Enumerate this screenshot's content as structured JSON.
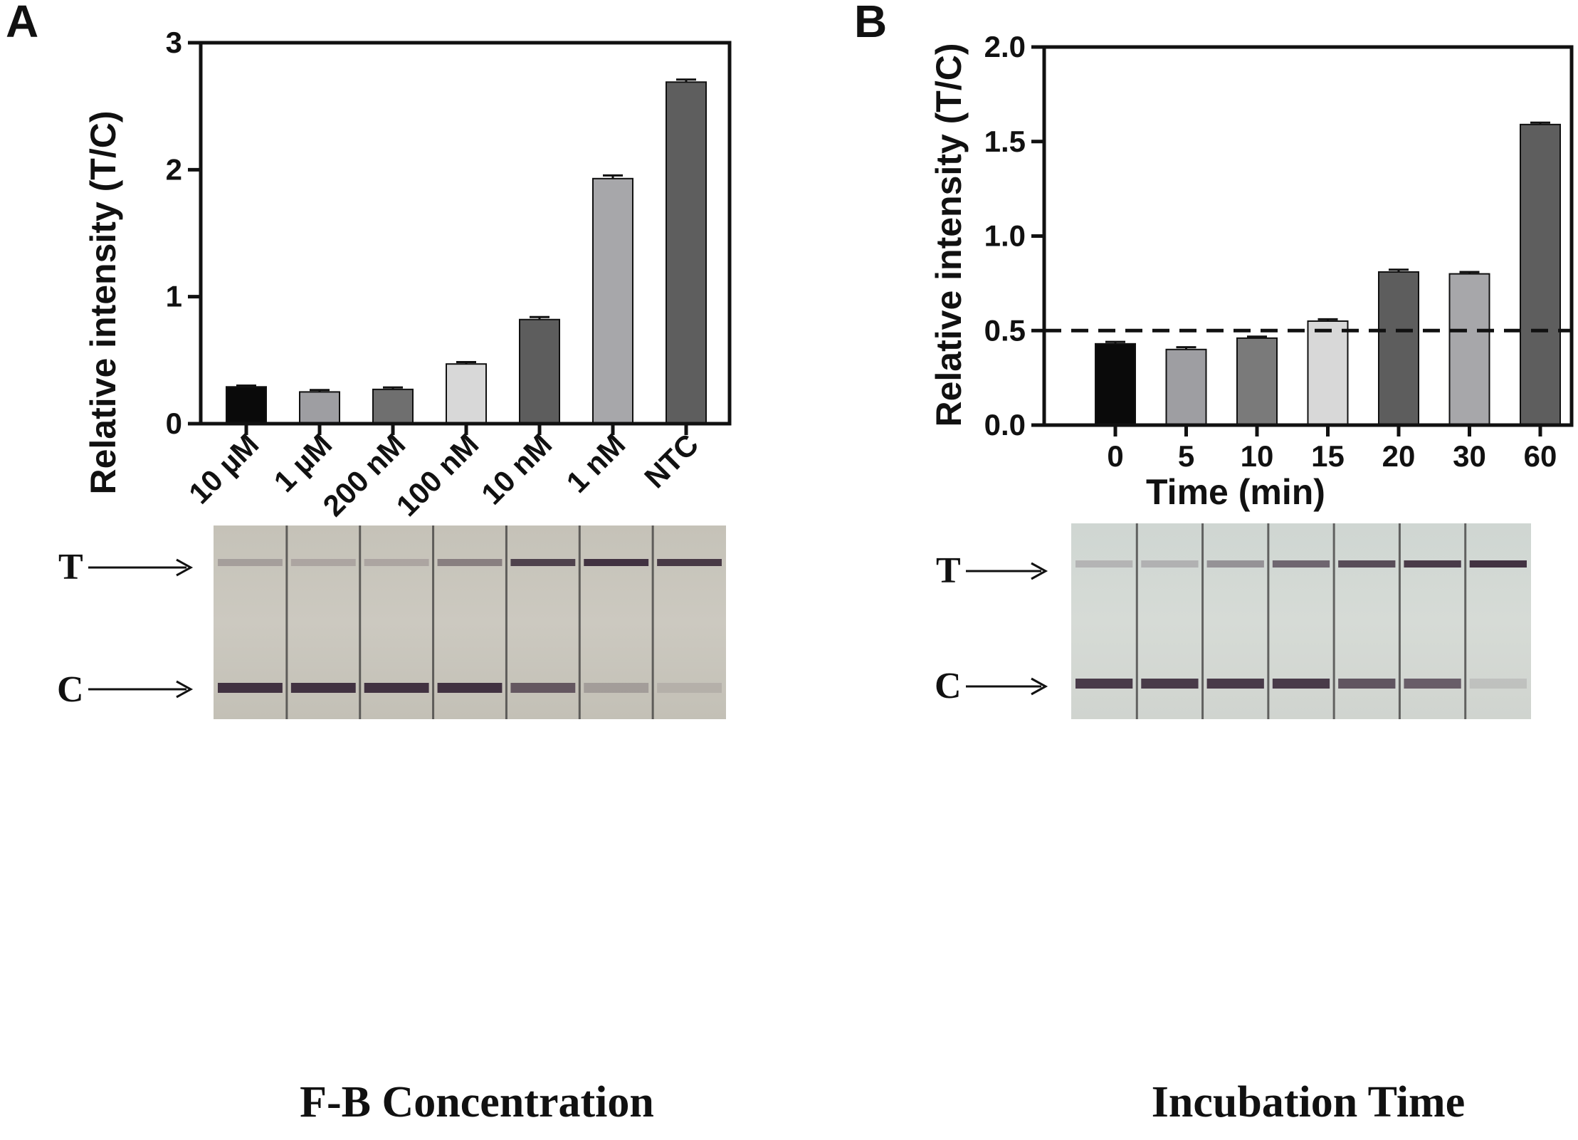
{
  "chart_data": [
    {
      "type": "bar",
      "panel": "A",
      "title": "",
      "xlabel": "",
      "ylabel": "Relative intensity (T/C)",
      "ylim": [
        0,
        3
      ],
      "yticks": [
        "0",
        "1",
        "2",
        "3"
      ],
      "categories": [
        "10 µM",
        "1 µM",
        "200 nM",
        "100 nM",
        "10 nM",
        "1 nM",
        "NTC"
      ],
      "values": [
        0.29,
        0.25,
        0.27,
        0.47,
        0.82,
        1.93,
        2.69
      ],
      "errors": [
        0.01,
        0.015,
        0.015,
        0.015,
        0.02,
        0.025,
        0.02
      ],
      "colors": [
        "#0a0a0a",
        "#9e9ea2",
        "#6f6f6f",
        "#d8d8d8",
        "#5d5d5d",
        "#a7a7aa",
        "#5e5e5e"
      ],
      "grid": false
    },
    {
      "type": "bar",
      "panel": "B",
      "title": "",
      "xlabel": "Time (min)",
      "ylabel": "Relative intensity (T/C)",
      "ylim": [
        0,
        2
      ],
      "yticks": [
        "0.0",
        "0.5",
        "1.0",
        "1.5",
        "2.0"
      ],
      "categories": [
        "0",
        "5",
        "10",
        "15",
        "20",
        "30",
        "60"
      ],
      "values": [
        0.43,
        0.4,
        0.46,
        0.55,
        0.81,
        0.8,
        1.59
      ],
      "errors": [
        0.01,
        0.012,
        0.008,
        0.01,
        0.012,
        0.01,
        0.01
      ],
      "colors": [
        "#0a0a0a",
        "#9e9ea2",
        "#7a7a7a",
        "#d8d8d8",
        "#5d5d5d",
        "#a7a7aa",
        "#5e5e5e"
      ],
      "reference_line": 0.5,
      "grid": false
    }
  ],
  "panels": {
    "a": {
      "letter": "A",
      "caption": "F-B Concentration",
      "strip": {
        "t_label": "T",
        "c_label": "C",
        "t_intensity": [
          0.25,
          0.2,
          0.2,
          0.45,
          0.85,
          0.95,
          0.9
        ],
        "c_intensity": [
          0.95,
          0.95,
          0.95,
          0.95,
          0.7,
          0.25,
          0.12
        ]
      }
    },
    "b": {
      "letter": "B",
      "caption": "Incubation Time",
      "strip": {
        "t_label": "T",
        "c_label": "C",
        "t_intensity": [
          0.2,
          0.22,
          0.4,
          0.65,
          0.8,
          0.9,
          0.95
        ],
        "c_intensity": [
          0.9,
          0.9,
          0.9,
          0.9,
          0.75,
          0.7,
          0.12
        ]
      }
    }
  },
  "colors": {
    "axis": "#111111",
    "strip_bg_a": "#c9c6bd",
    "strip_bg_b": "#d3d8d3",
    "band": "#3a2a3a"
  }
}
